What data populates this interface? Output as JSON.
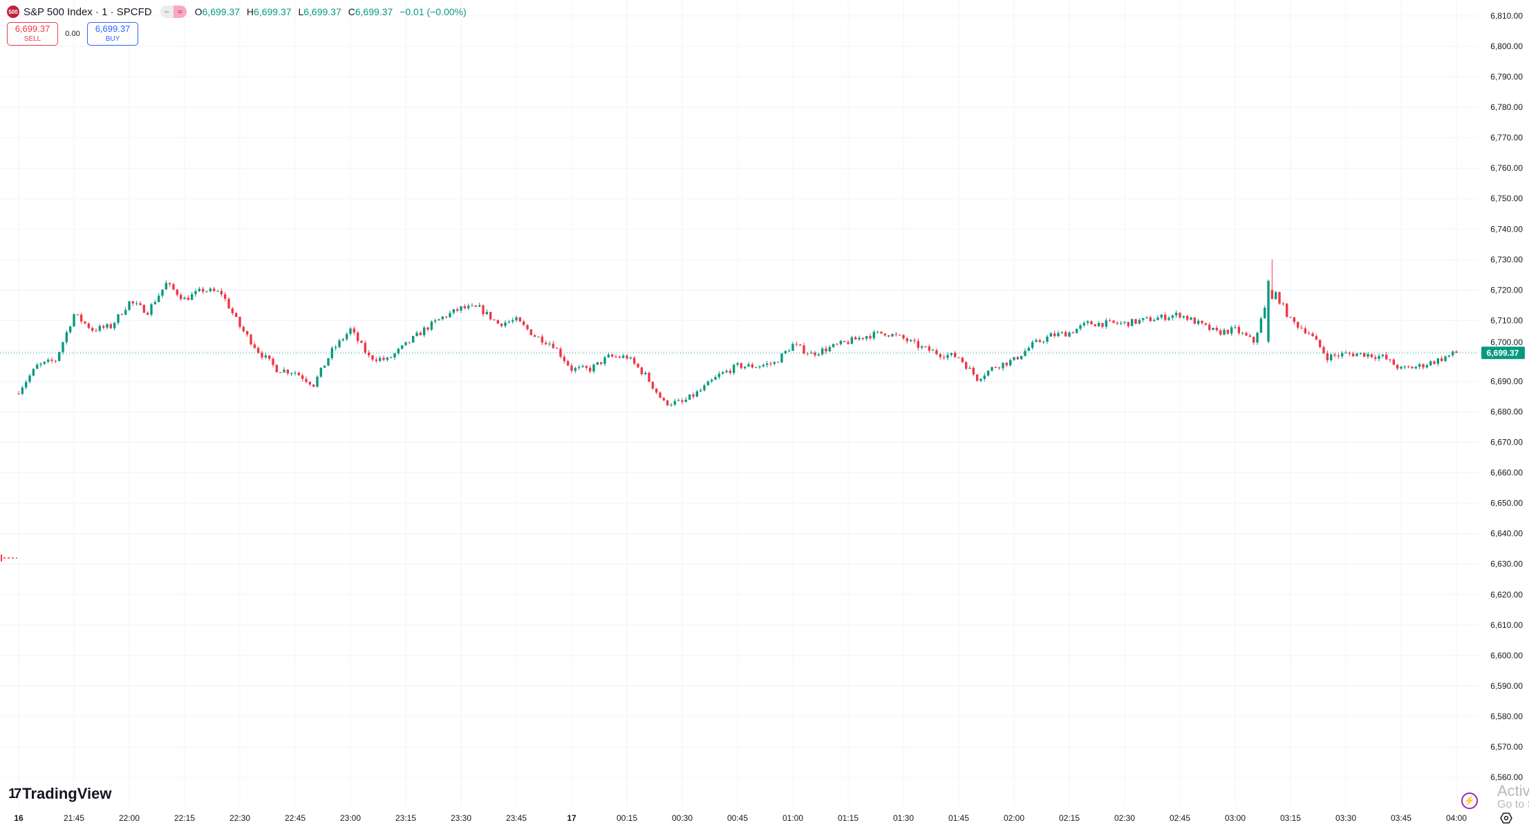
{
  "header": {
    "logo_text": "500",
    "title": "S&P 500 Index · 1 · SPCFD",
    "ohlc": [
      {
        "key": "O",
        "value": "6,699.37"
      },
      {
        "key": "H",
        "value": "6,699.37"
      },
      {
        "key": "L",
        "value": "6,699.37"
      },
      {
        "key": "C",
        "value": "6,699.37"
      }
    ],
    "change": "−0.01 (−0.00%)"
  },
  "trade": {
    "sell_price": "6,699.37",
    "sell_label": "SELL",
    "spread": "0.00",
    "buy_price": "6,699.37",
    "buy_label": "BUY"
  },
  "branding": {
    "watermark": "TradingView",
    "mark": "17"
  },
  "os_watermark": {
    "line1": "Activ",
    "line2": "Go to S"
  },
  "colors": {
    "up": "#089981",
    "down": "#f23645",
    "grid": "#f0f3fa",
    "last_price_bg": "#089981"
  },
  "chart_data": {
    "type": "candlestick",
    "interval": "1 minute",
    "last_price": 6699.37,
    "last_price_label": "6,699.37",
    "ylim": [
      6555,
      6815
    ],
    "y_ticks": [
      "6,810.00",
      "6,800.00",
      "6,790.00",
      "6,780.00",
      "6,770.00",
      "6,760.00",
      "6,750.00",
      "6,740.00",
      "6,730.00",
      "6,720.00",
      "6,710.00",
      "6,700.00",
      "6,690.00",
      "6,680.00",
      "6,670.00",
      "6,660.00",
      "6,650.00",
      "6,640.00",
      "6,630.00",
      "6,620.00",
      "6,610.00",
      "6,600.00",
      "6,590.00",
      "6,580.00",
      "6,570.00",
      "6,560.00"
    ],
    "x_ticks": [
      "16",
      "21:45",
      "22:00",
      "22:15",
      "22:30",
      "22:45",
      "23:00",
      "23:15",
      "23:30",
      "23:45",
      "17",
      "00:15",
      "00:30",
      "00:45",
      "01:00",
      "01:15",
      "01:30",
      "01:45",
      "02:00",
      "02:15",
      "02:30",
      "02:45",
      "03:00",
      "03:15",
      "03:30",
      "03:45",
      "04:00"
    ],
    "x_start": "21:30",
    "close_every_5min": [
      6687,
      6695,
      6697,
      6712,
      6707,
      6708,
      6716,
      6713,
      6722,
      6717,
      6720,
      6719,
      6708,
      6700,
      6694,
      6693,
      6689,
      6700,
      6707,
      6698,
      6697,
      6702,
      6707,
      6711,
      6714,
      6714,
      6709,
      6710,
      6705,
      6702,
      6694,
      6694,
      6698,
      6698,
      6692,
      6683,
      6683,
      6687,
      6692,
      6695,
      6695,
      6696,
      6702,
      6699,
      6701,
      6703,
      6705,
      6706,
      6704,
      6701,
      6699,
      6698,
      6691,
      6695,
      6697,
      6702,
      6705,
      6706,
      6709,
      6709,
      6709,
      6710,
      6711,
      6712,
      6709,
      6706,
      6707,
      6703,
      6721,
      6710,
      6706,
      6698,
      6699,
      6699,
      6698,
      6694,
      6695,
      6697,
      6699.37
    ],
    "notable_candles": [
      {
        "time": "03:09",
        "open": 6703,
        "high": 6723.5,
        "low": 6702.5,
        "close": 6723
      },
      {
        "time": "03:10",
        "open": 6720,
        "high": 6730,
        "low": 6719.5,
        "close": 6717
      }
    ],
    "other_marker_price": 6632
  }
}
